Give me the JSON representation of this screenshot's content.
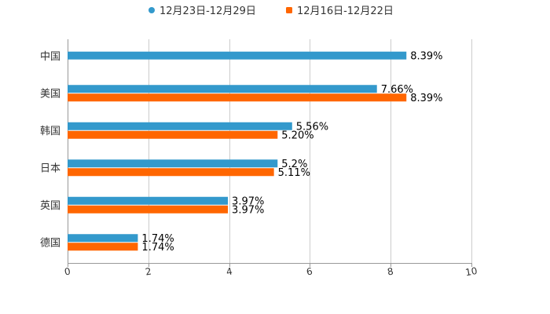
{
  "chart_data": {
    "type": "bar",
    "orientation": "horizontal",
    "title": "",
    "xlabel": "",
    "ylabel": "",
    "xlim": [
      0,
      10
    ],
    "x_ticks": [
      "0",
      "2",
      "4",
      "6",
      "8",
      "10"
    ],
    "grid": true,
    "legend_position": "top-center",
    "categories": [
      "中国",
      "美国",
      "韩国",
      "日本",
      "英国",
      "德国"
    ],
    "series": [
      {
        "name": "12月23日-12月29日",
        "color": "#3399cc",
        "values": [
          8.39,
          7.66,
          5.56,
          5.2,
          3.97,
          1.74
        ],
        "labels": [
          "8.39%",
          "7.66%",
          "5.56%",
          "5.2%",
          "3.97%",
          "1.74%"
        ]
      },
      {
        "name": "12月16日-12月22日",
        "color": "#ff6600",
        "values": [
          null,
          8.39,
          5.2,
          5.11,
          3.97,
          1.74
        ],
        "labels": [
          null,
          "8.39%",
          "5.20%",
          "5.11%",
          "3.97%",
          "1.74%"
        ]
      }
    ]
  }
}
